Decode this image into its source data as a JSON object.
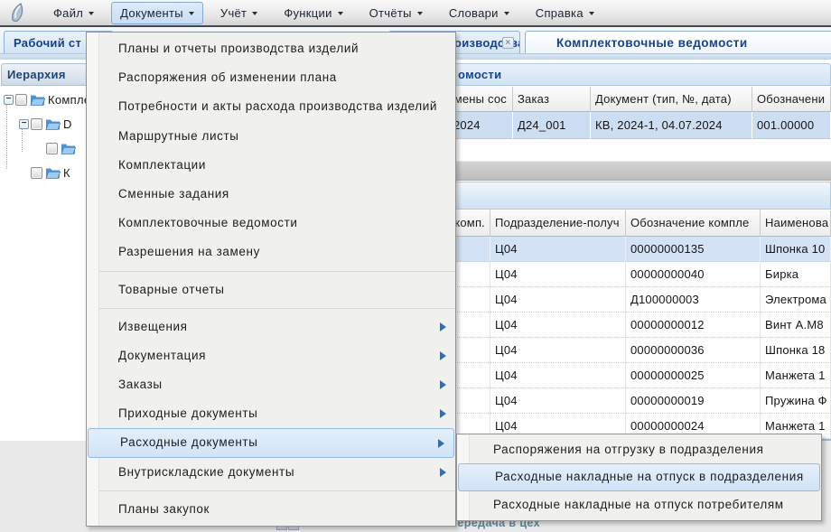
{
  "menubar": {
    "items": [
      {
        "id": "file",
        "label": "Файл",
        "active": false
      },
      {
        "id": "documents",
        "label": "Документы",
        "active": true
      },
      {
        "id": "accounting",
        "label": "Учёт",
        "active": false
      },
      {
        "id": "functions",
        "label": "Функции",
        "active": false
      },
      {
        "id": "reports",
        "label": "Отчёты",
        "active": false
      },
      {
        "id": "dictionaries",
        "label": "Словари",
        "active": false
      },
      {
        "id": "help",
        "label": "Справка",
        "active": false
      }
    ]
  },
  "tabbar": {
    "tabs": [
      {
        "id": "desktop",
        "label": "Рабочий ст",
        "active": false,
        "close": ""
      },
      {
        "id": "production",
        "label": "оизводства изделий",
        "active": false,
        "close": "×"
      },
      {
        "id": "picking-lists",
        "label": "Комплектовочные ведомости",
        "active": true,
        "close": ""
      }
    ]
  },
  "left_panel": {
    "title": "Иерархия",
    "tree": [
      {
        "label": "Комплект",
        "level": 0,
        "expander": true
      },
      {
        "label": "D",
        "level": 1,
        "expander": true
      },
      {
        "label": "",
        "level": 2,
        "expander": false
      },
      {
        "label": "К",
        "level": 1,
        "expander": false
      }
    ]
  },
  "right_panel": {
    "title_fragment": "омости"
  },
  "table1": {
    "columns": [
      "смены сос",
      "Заказ",
      "Документ (тип, №, дата)",
      "Обозначени"
    ],
    "rows": [
      [
        "2024",
        "Д24_001",
        "КВ, 2024-1, 04.07.2024",
        "001.00000"
      ]
    ],
    "selected_row": 0
  },
  "table2": {
    "columns": [
      "комп.",
      "Подразделение-получ",
      "Обозначение компле",
      "Наименова"
    ],
    "rows": [
      [
        "",
        "Ц04",
        "00000000135",
        "Шпонка 10"
      ],
      [
        "",
        "Ц04",
        "00000000040",
        "Бирка"
      ],
      [
        "",
        "Ц04",
        "Д100000003",
        "Электрома"
      ],
      [
        "",
        "Ц04",
        "00000000012",
        "Винт А.М8"
      ],
      [
        "",
        "Ц04",
        "00000000036",
        "Шпонка 18"
      ],
      [
        "",
        "Ц04",
        "00000000025",
        "Манжета 1"
      ],
      [
        "",
        "Ц04",
        "00000000019",
        "Пружина Ф"
      ],
      [
        "",
        "Ц04",
        "00000000024",
        "Манжета 1"
      ]
    ],
    "selected_row": 0
  },
  "menu": {
    "items": [
      {
        "type": "item",
        "label": "Планы и отчеты производства изделий",
        "submenu": false,
        "highlighted": false
      },
      {
        "type": "item",
        "label": "Распоряжения об изменении плана",
        "submenu": false,
        "highlighted": false
      },
      {
        "type": "item",
        "label": "Потребности и акты расхода производства изделий",
        "submenu": false,
        "highlighted": false
      },
      {
        "type": "item",
        "label": "Маршрутные листы",
        "submenu": false,
        "highlighted": false
      },
      {
        "type": "item",
        "label": "Комплектации",
        "submenu": false,
        "highlighted": false
      },
      {
        "type": "item",
        "label": "Сменные задания",
        "submenu": false,
        "highlighted": false
      },
      {
        "type": "item",
        "label": "Комплектовочные ведомости",
        "submenu": false,
        "highlighted": false
      },
      {
        "type": "item",
        "label": "Разрешения на замену",
        "submenu": false,
        "highlighted": false
      },
      {
        "type": "separator"
      },
      {
        "type": "item",
        "label": "Товарные отчеты",
        "submenu": false,
        "highlighted": false
      },
      {
        "type": "separator"
      },
      {
        "type": "item",
        "label": "Извещения",
        "submenu": true,
        "highlighted": false
      },
      {
        "type": "item",
        "label": "Документация",
        "submenu": true,
        "highlighted": false
      },
      {
        "type": "item",
        "label": "Заказы",
        "submenu": true,
        "highlighted": false
      },
      {
        "type": "item",
        "label": "Приходные документы",
        "submenu": true,
        "highlighted": false
      },
      {
        "type": "item",
        "label": "Расходные документы",
        "submenu": true,
        "highlighted": true
      },
      {
        "type": "item",
        "label": "Внутрискладские документы",
        "submenu": true,
        "highlighted": false
      },
      {
        "type": "separator"
      },
      {
        "type": "item",
        "label": "Планы закупок",
        "submenu": false,
        "highlighted": false
      }
    ]
  },
  "submenu": {
    "items": [
      {
        "label": "Распоряжения на отгрузку в подразделения",
        "highlighted": false
      },
      {
        "label": "Расходные накладные на отпуск в подразделения",
        "highlighted": true
      },
      {
        "label": "Расходные накладные на отпуск потребителям",
        "highlighted": false
      }
    ]
  },
  "background": {
    "bottom_text": "Передача в цех"
  },
  "colors": {
    "accent_blue": "#15428b",
    "highlight_border": "#97b9e4",
    "highlight_fill": "#d9e8f8",
    "selected_row": "#cddef2",
    "submenu_arrow": "#2f6fb5"
  }
}
